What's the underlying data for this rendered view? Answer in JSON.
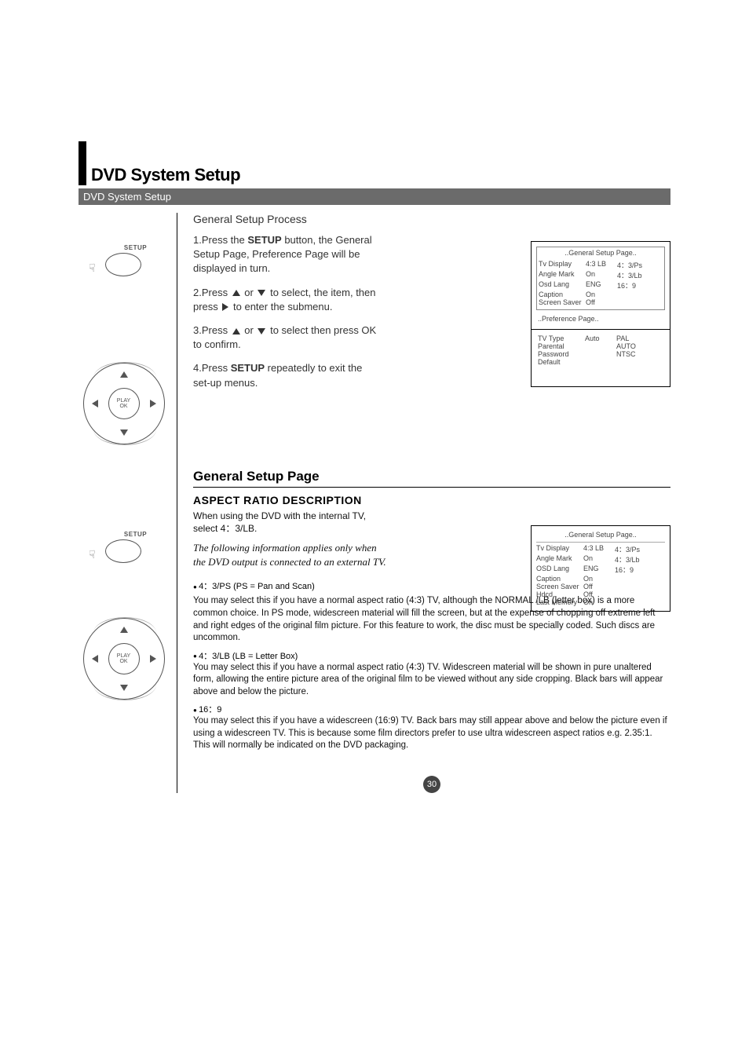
{
  "header": {
    "main_title": "DVD System Setup",
    "subtitle": "DVD System Setup"
  },
  "remote": {
    "setup_label": "SETUP",
    "play_label": "PLAY",
    "ok_label": "OK"
  },
  "process": {
    "heading": "General Setup Process",
    "step1_a": "1.Press the ",
    "step1_b": "SETUP",
    "step1_c": " button, the General Setup Page, Preference Page  will be displayed in turn.",
    "step2_a": "2.Press ",
    "step2_b": " or ",
    "step2_c": " to select, the item, then press ",
    "step2_d": " to enter the submenu.",
    "step3_a": "3.Press ",
    "step3_b": " or ",
    "step3_c": " to select  then press OK to confirm.",
    "step4_a": "4.Press ",
    "step4_b": "SETUP",
    "step4_c": " repeatedly  to exit  the  set-up menus."
  },
  "osd1": {
    "title": "..General Setup Page..",
    "rows": [
      [
        "Tv Display",
        "4:3 LB",
        "4：3/Ps"
      ],
      [
        "Angle Mark",
        "On",
        "4：3/Lb"
      ],
      [
        "Osd Lang",
        "ENG",
        "16：9"
      ],
      [
        "Caption",
        "On",
        ""
      ],
      [
        "Screen Saver",
        "Off",
        ""
      ]
    ],
    "pref_title": "..Preference Page..",
    "pref_rows": [
      [
        "TV Type",
        "Auto",
        "PAL"
      ],
      [
        "Parental",
        "",
        "AUTO"
      ],
      [
        "Password",
        "",
        "NTSC"
      ],
      [
        "Default",
        "",
        ""
      ]
    ]
  },
  "gsp": {
    "title": "General Setup Page",
    "aspect_heading": "ASPECT RATIO DESCRIPTION",
    "intro": "When using the DVD with the internal TV, select 4：3/LB.",
    "italic_note": "The following information applies only when the DVD output is connected to an external TV.",
    "ps_head": "4：3/PS (PS = Pan and Scan)",
    "ps_body": "You may select this if you have a normal aspect ratio (4:3) TV, although the NORMAL /LB (letter box) is a more common choice. In PS mode, widescreen material will fill the screen, but at the expense of chopping off extreme left and right edges of the original film picture. For this feature to work, the disc must be specially coded. Such discs are uncommon.",
    "lb_head": "4：3/LB (LB = Letter Box)",
    "lb_body": "You may select this if you have a normal aspect ratio (4:3) TV. Widescreen material will be shown in pure unaltered form, allowing the entire picture area of the original film to be viewed without any side cropping. Black bars will appear above and below the picture.",
    "w_head": "16：9",
    "w_body": "You may select this if you have a widescreen (16:9) TV. Back bars may still appear above and below the picture even if using a widescreen TV. This is because some film directors prefer to use ultra widescreen aspect ratios e.g. 2.35:1. This will normally be indicated on the DVD packaging."
  },
  "osd2": {
    "title": "..General Setup Page..",
    "rows": [
      [
        "Tv Display",
        "4:3 LB",
        "4：3/Ps"
      ],
      [
        "Angle Mark",
        "On",
        "4：3/Lb"
      ],
      [
        "OSD Lang",
        "ENG",
        "16：9"
      ],
      [
        "Caption",
        "On",
        ""
      ],
      [
        "Screen Saver",
        "Off",
        ""
      ],
      [
        "Hdcd",
        "Off",
        ""
      ],
      [
        "Last Memory",
        "On",
        ""
      ]
    ]
  },
  "page_number": "30"
}
